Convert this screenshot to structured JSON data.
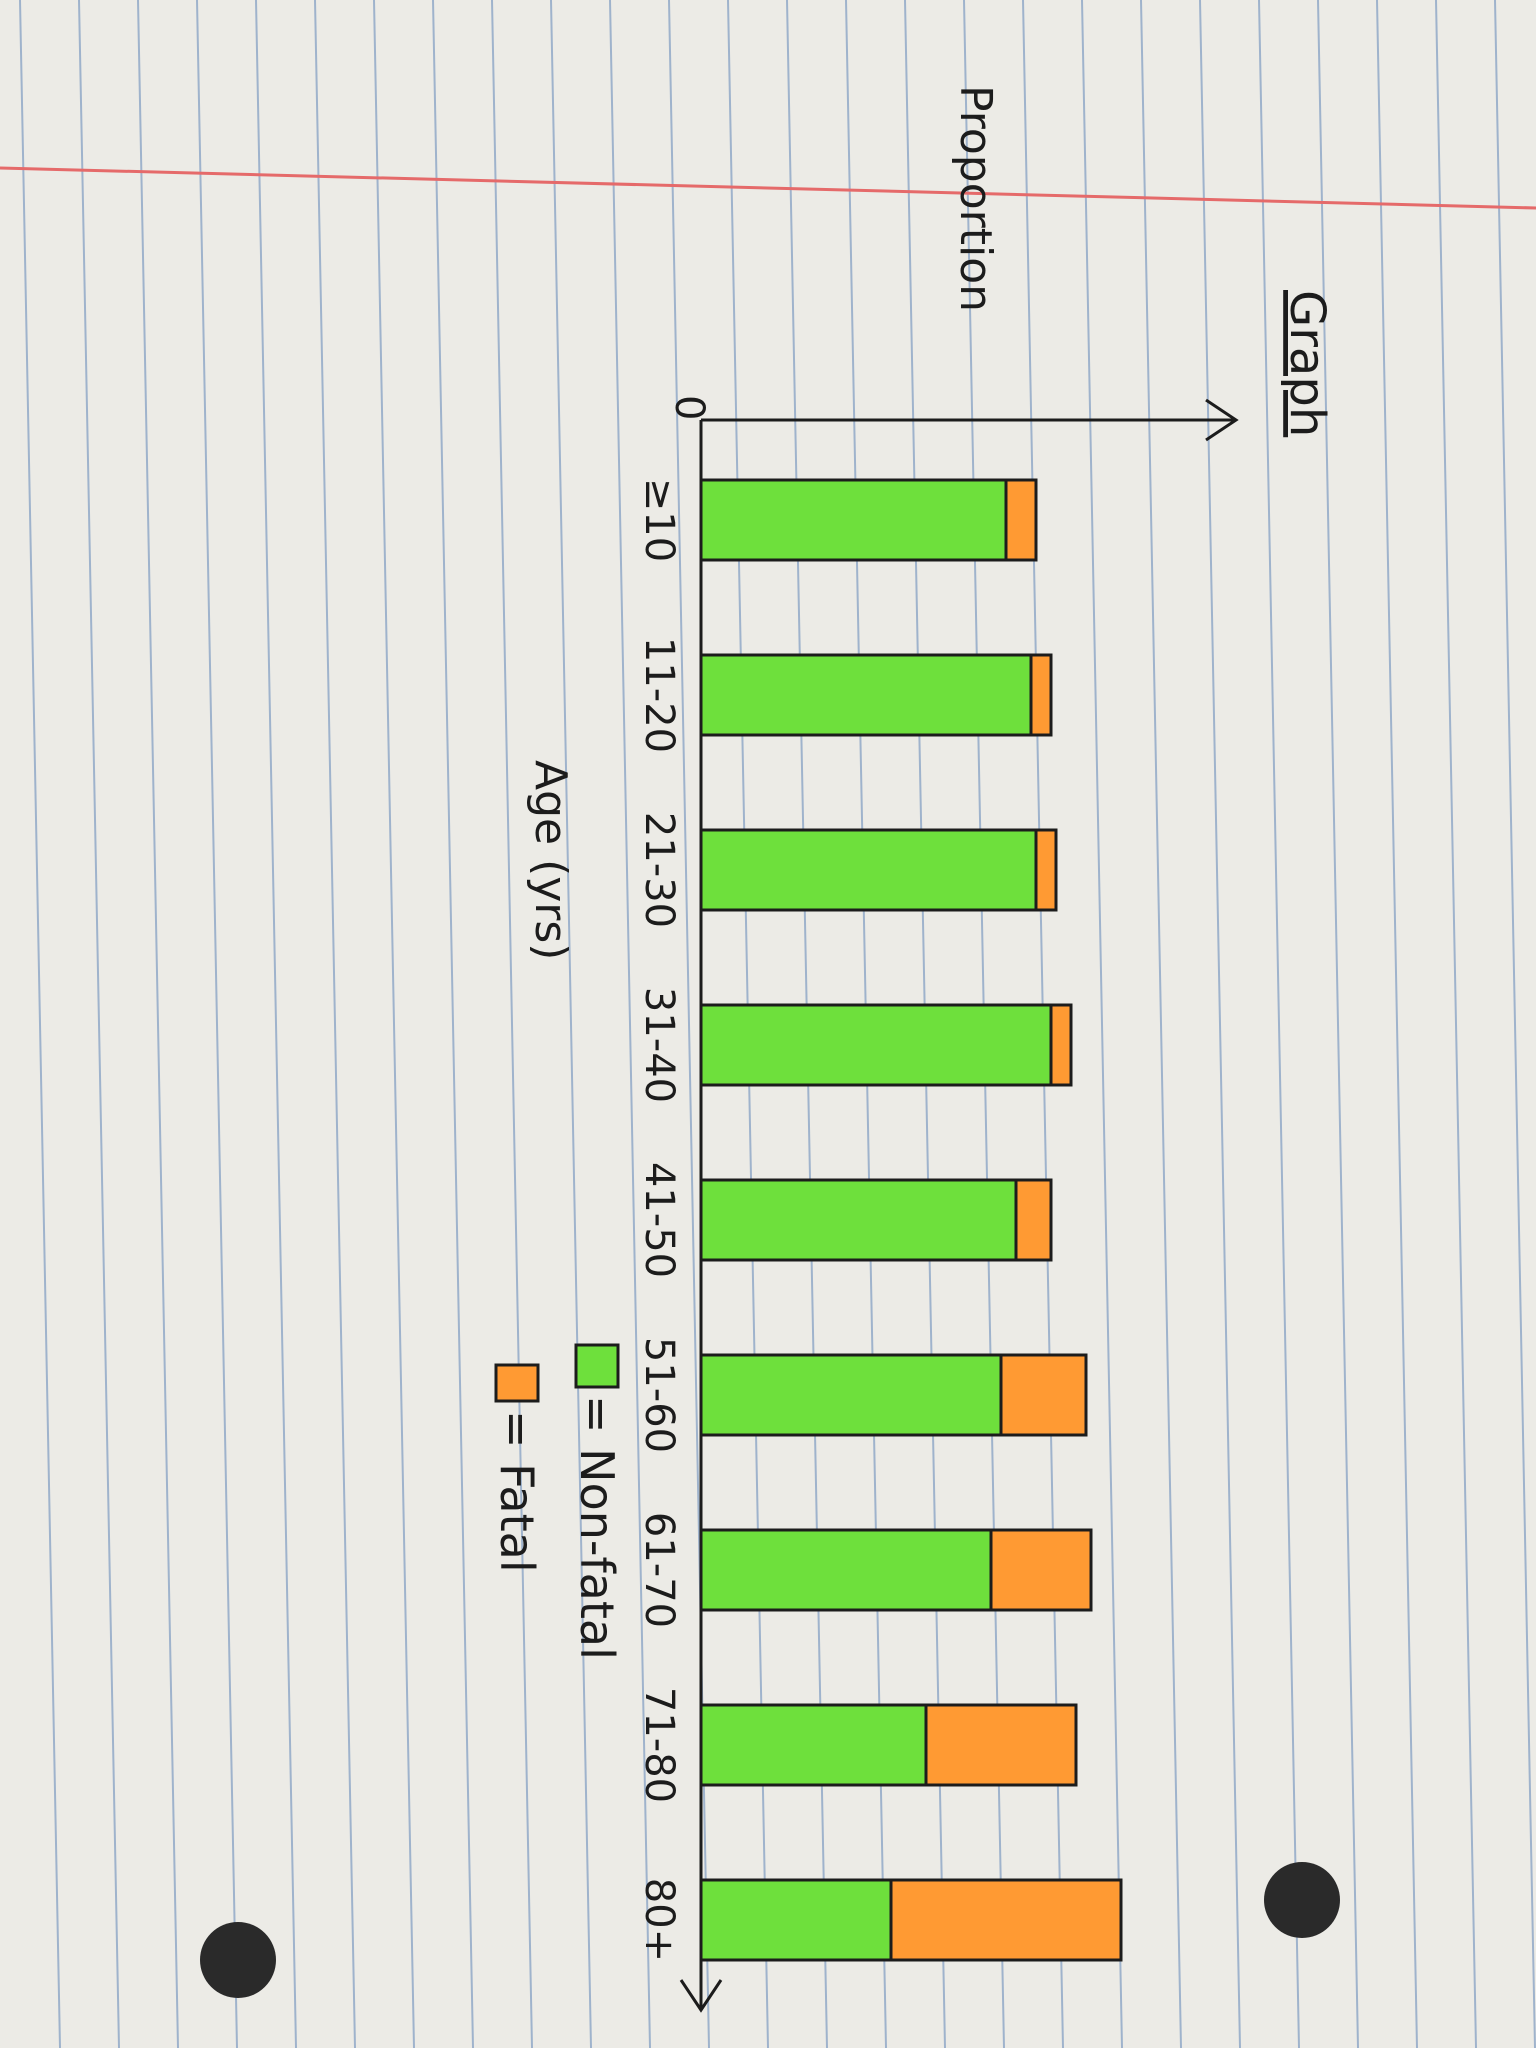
{
  "chart_data": {
    "type": "bar",
    "stacked": true,
    "orientation": "horizontal-in-image (drawn on rotated notebook page)",
    "title": "Graph",
    "xlabel": "Age (yrs)",
    "ylabel": "Proportion",
    "y_origin_label": "0",
    "ylim": [
      0,
      1
    ],
    "grid": false,
    "categories": [
      "≥10",
      "11-20",
      "21-30",
      "31-40",
      "41-50",
      "51-60",
      "61-70",
      "71-80",
      "80+"
    ],
    "series": [
      {
        "name": "Non-fatal",
        "color": "#6ee03c",
        "values": [
          0.61,
          0.66,
          0.67,
          0.7,
          0.63,
          0.6,
          0.58,
          0.45,
          0.38
        ]
      },
      {
        "name": "Fatal",
        "color": "#ff9a33",
        "values": [
          0.06,
          0.04,
          0.04,
          0.04,
          0.07,
          0.17,
          0.2,
          0.3,
          0.46
        ]
      }
    ],
    "legend_placement": "bottom",
    "legend": [
      {
        "label": "= Non-fatal",
        "color": "#6ee03c"
      },
      {
        "label": "= Fatal",
        "color": "#ff9a33"
      }
    ]
  }
}
